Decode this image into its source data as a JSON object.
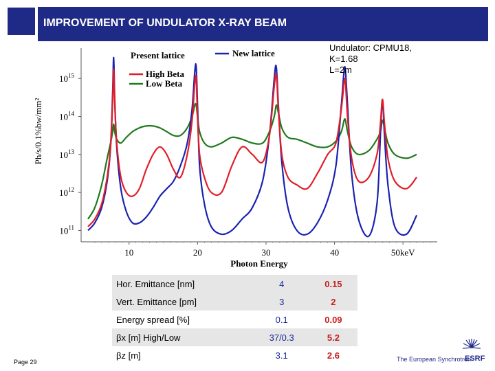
{
  "header": {
    "title": "IMPROVEMENT OF UNDULATOR X-RAY BEAM"
  },
  "undulator_info": {
    "line1": "Undulator: CPMU18,",
    "line2": "K=1.68",
    "line3": "L=2m"
  },
  "colors": {
    "header_bg": "#1f2a86",
    "new_lattice": "#1a22b0",
    "high_beta": "#e01e28",
    "low_beta": "#1e7a1e",
    "present_value": "#1a2a9a",
    "new_value": "#c81e1e"
  },
  "chart_data": {
    "type": "line",
    "xlabel": "Photon Energy",
    "ylabel": "Ph/s/0.1%bw/mm²",
    "xlim": [
      3,
      55
    ],
    "ylim_log10": [
      10.7,
      15.8
    ],
    "y_log_scale": true,
    "x_ticks": [
      "10",
      "20",
      "30",
      "40",
      "50keV"
    ],
    "y_ticks": [
      {
        "base": "10",
        "exp": "11"
      },
      {
        "base": "10",
        "exp": "12"
      },
      {
        "base": "10",
        "exp": "13"
      },
      {
        "base": "10",
        "exp": "14"
      },
      {
        "base": "10",
        "exp": "15"
      }
    ],
    "legend": {
      "placement": "top-left",
      "present_lattice": "Present lattice",
      "new_lattice": "New lattice",
      "high_beta": "High Beta",
      "low_beta": "Low Beta"
    },
    "series": [
      {
        "name": "New lattice",
        "color": "#1a22b0",
        "x": [
          4,
          5,
          6,
          6.8,
          7.3,
          7.6,
          7.75,
          7.9,
          8.2,
          8.8,
          9.6,
          10.5,
          11.5,
          12.5,
          13.5,
          14.5,
          15.5,
          16.5,
          17.5,
          18.5,
          19.2,
          19.6,
          19.8,
          20.0,
          20.3,
          21.0,
          22.0,
          23.5,
          25,
          26.5,
          28,
          29.5,
          30.5,
          31.2,
          31.5,
          31.8,
          32.3,
          33.2,
          34.5,
          36,
          37.5,
          39,
          40.2,
          41.0,
          41.4,
          41.6,
          41.9,
          42.5,
          43.5,
          45,
          46.2,
          46.7,
          47.0,
          47.3,
          47.8,
          48.8,
          50.5,
          52
        ],
        "y": [
          11.0,
          11.2,
          11.6,
          12.3,
          13.2,
          14.6,
          15.55,
          14.5,
          13.2,
          12.1,
          11.5,
          11.2,
          11.2,
          11.35,
          11.6,
          11.9,
          12.1,
          12.3,
          12.7,
          13.3,
          14.2,
          15.2,
          15.3,
          14.3,
          12.7,
          11.7,
          11.1,
          10.9,
          11.0,
          11.3,
          11.6,
          12.3,
          13.5,
          15.0,
          15.3,
          14.3,
          12.8,
          11.6,
          11.0,
          10.9,
          11.2,
          11.8,
          12.7,
          14.3,
          15.2,
          15.2,
          14.3,
          12.5,
          11.3,
          10.85,
          11.7,
          13.5,
          14.4,
          13.5,
          12.2,
          11.1,
          10.9,
          11.4
        ]
      },
      {
        "name": "High Beta",
        "color": "#e01e28",
        "x": [
          4,
          5,
          6,
          6.8,
          7.3,
          7.6,
          7.75,
          7.9,
          8.2,
          8.8,
          9.6,
          10.5,
          11.5,
          12.5,
          13.5,
          14.5,
          15.5,
          16.5,
          17.5,
          18.5,
          19.2,
          19.6,
          19.8,
          20.0,
          20.3,
          21.0,
          22.0,
          23.5,
          25,
          26.5,
          28,
          29.5,
          30.5,
          31.2,
          31.5,
          31.8,
          32.3,
          33.2,
          34.5,
          36,
          37.5,
          39,
          40.2,
          41.0,
          41.4,
          41.6,
          41.9,
          42.5,
          43.5,
          45,
          46.2,
          46.7,
          47.0,
          47.3,
          47.8,
          48.8,
          50.5,
          52
        ],
        "y": [
          11.1,
          11.3,
          11.7,
          12.4,
          13.2,
          14.4,
          15.25,
          14.4,
          13.3,
          12.4,
          12.0,
          11.9,
          12.1,
          12.6,
          13.0,
          13.2,
          13.0,
          12.6,
          12.4,
          13.0,
          13.9,
          14.9,
          15.0,
          14.0,
          13.0,
          12.4,
          12.0,
          12.0,
          12.7,
          13.2,
          13.0,
          12.8,
          13.5,
          14.8,
          15.1,
          14.2,
          13.0,
          12.4,
          12.2,
          12.1,
          12.5,
          13.0,
          13.3,
          14.2,
          14.9,
          14.9,
          14.0,
          12.9,
          12.3,
          12.4,
          13.0,
          13.8,
          14.45,
          13.8,
          12.9,
          12.3,
          12.1,
          12.4
        ]
      },
      {
        "name": "Low Beta",
        "color": "#1e7a1e",
        "x": [
          4,
          5,
          6,
          6.8,
          7.3,
          7.6,
          7.75,
          7.9,
          8.2,
          8.8,
          9.6,
          10.5,
          11.5,
          12.5,
          13.5,
          14.5,
          15.5,
          16.5,
          17.5,
          18.5,
          19.2,
          19.6,
          19.8,
          20.0,
          20.3,
          21.0,
          22.0,
          23.5,
          25,
          26.5,
          28,
          29.5,
          30.5,
          31.2,
          31.5,
          31.8,
          32.3,
          33.2,
          34.5,
          36,
          37.5,
          39,
          40.2,
          41.0,
          41.4,
          41.6,
          41.9,
          42.5,
          43.5,
          45,
          46.2,
          46.7,
          47.0,
          47.3,
          47.8,
          48.8,
          50.5,
          52
        ],
        "y": [
          11.3,
          11.6,
          12.2,
          12.9,
          13.3,
          13.6,
          13.8,
          13.6,
          13.4,
          13.3,
          13.45,
          13.6,
          13.7,
          13.75,
          13.75,
          13.7,
          13.6,
          13.5,
          13.5,
          13.7,
          14.0,
          14.3,
          14.3,
          14.0,
          13.6,
          13.3,
          13.2,
          13.3,
          13.45,
          13.4,
          13.3,
          13.3,
          13.6,
          14.0,
          14.3,
          14.1,
          13.7,
          13.45,
          13.4,
          13.3,
          13.2,
          13.2,
          13.35,
          13.6,
          13.9,
          13.9,
          13.6,
          13.2,
          13.0,
          13.1,
          13.4,
          13.6,
          13.9,
          13.7,
          13.3,
          13.0,
          12.9,
          13.0
        ]
      }
    ]
  },
  "table": {
    "rows": [
      {
        "param": "Hor. Emittance [nm]",
        "present": "4",
        "new": "0.15",
        "shaded": true
      },
      {
        "param": "Vert. Emittance [pm]",
        "present": "3",
        "new": "2",
        "shaded": true
      },
      {
        "param": "Energy spread [%]",
        "present": "0.1",
        "new": "0.09",
        "shaded": false
      },
      {
        "param": "βx [m] High/Low",
        "present": "37/0.3",
        "new": "5.2",
        "shaded": true
      },
      {
        "param": "βz [m]",
        "present": "3.1",
        "new": "2.6",
        "shaded": false
      }
    ]
  },
  "footer": {
    "page_label": "Page 29",
    "institution": "The European Synchrotron",
    "logo": "ESRF"
  }
}
